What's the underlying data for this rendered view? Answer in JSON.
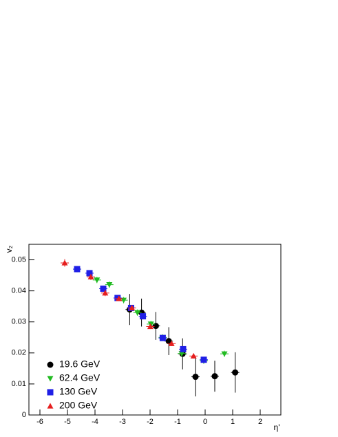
{
  "chart_data": {
    "type": "scatter",
    "x_label": "η'",
    "y_label": "v₂",
    "xlim": [
      -6.4,
      2.75
    ],
    "ylim": [
      0,
      0.055
    ],
    "xticks": [
      -6,
      -5,
      -4,
      -3,
      -2,
      -1,
      0,
      1,
      2
    ],
    "yticks": [
      0,
      0.01,
      0.02,
      0.03,
      0.04,
      0.05
    ],
    "legend": "lower left",
    "series": [
      {
        "name": "19.6 GeV",
        "color": "#000000",
        "marker": "circle",
        "x": [
          -2.74,
          -2.31,
          -1.79,
          -1.32,
          -0.82,
          -0.35,
          0.35,
          1.09
        ],
        "values": [
          0.034,
          0.033,
          0.0287,
          0.0238,
          0.0197,
          0.0123,
          0.0125,
          0.0137
        ],
        "errors": [
          0.005,
          0.0045,
          0.0045,
          0.0045,
          0.005,
          0.0063,
          0.005,
          0.0065
        ]
      },
      {
        "name": "62.4 GeV",
        "color": "#22bb22",
        "marker": "triangle-down",
        "x": [
          -4.65,
          -3.93,
          -3.48,
          -2.96,
          -2.46,
          -1.97,
          -1.54,
          -0.85,
          -0.05,
          0.7
        ],
        "values": [
          0.047,
          0.0435,
          0.042,
          0.037,
          0.033,
          0.0293,
          0.025,
          0.0198,
          0.0175,
          0.0197
        ],
        "errors": [
          0.001,
          0.001,
          0.001,
          0.001,
          0.001,
          0.001,
          0.001,
          0.001,
          0.001,
          0.001
        ]
      },
      {
        "name": "130 GeV",
        "color": "#1f1fe6",
        "marker": "square",
        "x": [
          -4.65,
          -4.2,
          -3.7,
          -3.18,
          -2.69,
          -2.26,
          -1.54,
          -0.8,
          -0.05
        ],
        "values": [
          0.047,
          0.0457,
          0.0407,
          0.0377,
          0.0345,
          0.0318,
          0.0248,
          0.0212,
          0.0178
        ],
        "errors": [
          0.0008,
          0.0008,
          0.0008,
          0.0008,
          0.0008,
          0.0008,
          0.0008,
          0.0008,
          0.0008
        ]
      },
      {
        "name": "200 GeV",
        "color": "#e61f1f",
        "marker": "triangle-up",
        "x": [
          -5.1,
          -4.15,
          -3.63,
          -3.13,
          -2.66,
          -1.99,
          -1.22,
          -0.42
        ],
        "values": [
          0.049,
          0.0445,
          0.0393,
          0.0375,
          0.0345,
          0.0285,
          0.023,
          0.019
        ],
        "errors": [
          0.0012,
          0.001,
          0.001,
          0.0008,
          0.0008,
          0.0008,
          0.0008,
          0.0008
        ]
      }
    ]
  }
}
